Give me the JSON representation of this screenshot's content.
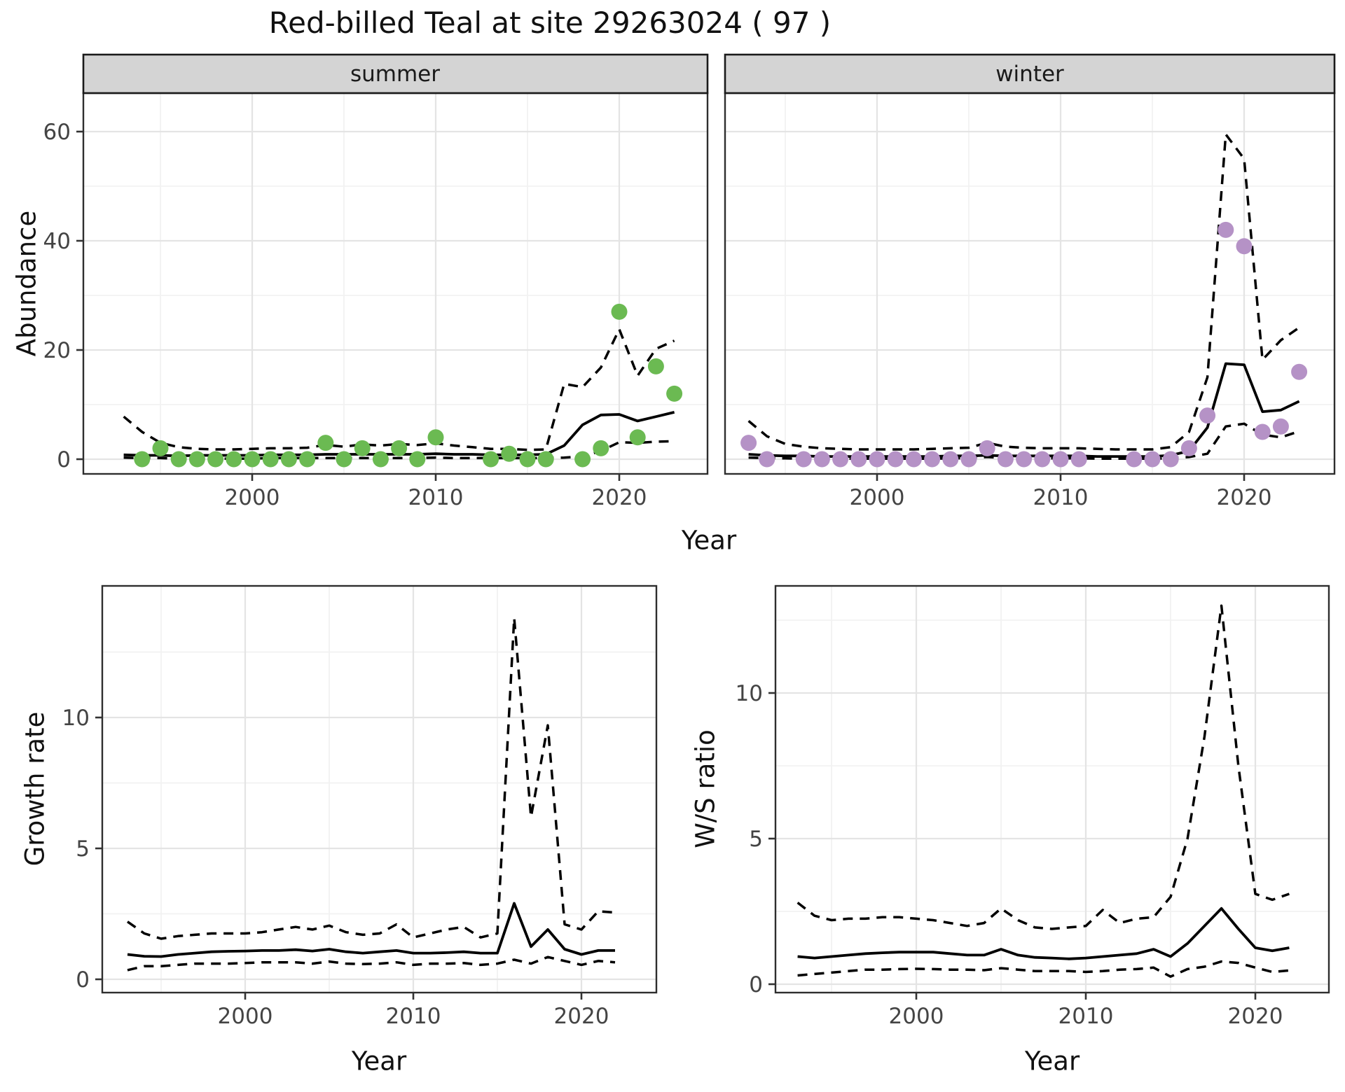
{
  "title": "Red-billed Teal at site 29263024 ( 97 )",
  "facets": {
    "summer": "summer",
    "winter": "winter"
  },
  "axis_titles": {
    "abundance": "Abundance",
    "year_top": "Year",
    "growth_rate": "Growth rate",
    "ws_ratio": "W/S ratio",
    "year_bottom_left": "Year",
    "year_bottom_right": "Year"
  },
  "colors": {
    "summer_point": "#6bba52",
    "winter_point": "#b592c6",
    "fit_line": "#000000",
    "ci_line": "#000000",
    "strip_bg": "#d4d4d4",
    "strip_border": "#1a1a1a",
    "panel_border": "#2e2e2e",
    "grid_major": "#e4e4e4",
    "grid_minor": "#f2f2f2",
    "tick_mark": "#333333",
    "tick_text": "#444444",
    "panel_bg": "#ffffff"
  },
  "chart_data": [
    {
      "id": "abundance_summer",
      "type": "scatter",
      "facet_label": "summer",
      "xlabel": "Year",
      "ylabel": "Abundance",
      "xlim": [
        1991,
        2024.6
      ],
      "ylim": [
        -2.7,
        67
      ],
      "x_ticks": {
        "major": [
          2000,
          2010,
          2020
        ],
        "labels": [
          "2000",
          "2010",
          "2020"
        ],
        "minor": [
          1995,
          2005,
          2015
        ]
      },
      "y_ticks": {
        "major": [
          0,
          20,
          40,
          60
        ],
        "labels": [
          "0",
          "20",
          "40",
          "60"
        ],
        "minor": [
          10,
          30,
          50
        ]
      },
      "points": {
        "years": [
          1994,
          1995,
          1996,
          1997,
          1998,
          1999,
          2000,
          2001,
          2002,
          2003,
          2004,
          2005,
          2006,
          2007,
          2008,
          2009,
          2010,
          2013,
          2014,
          2015,
          2016,
          2018,
          2019,
          2020,
          2021,
          2022,
          2023
        ],
        "values": [
          0,
          2,
          0,
          0,
          0,
          0,
          0,
          0,
          0,
          0,
          3,
          0,
          2,
          0,
          2,
          0,
          4,
          0,
          1,
          0,
          0,
          0,
          2,
          27,
          4,
          17,
          12
        ]
      },
      "fit": {
        "start_year": 1993,
        "values": [
          0.8,
          0.7,
          0.7,
          0.6,
          0.7,
          0.7,
          0.7,
          0.7,
          0.8,
          0.8,
          0.8,
          0.9,
          0.9,
          0.9,
          0.9,
          0.9,
          0.9,
          1.0,
          0.9,
          0.9,
          0.8,
          0.8,
          0.8,
          0.9,
          2.5,
          6.3,
          8.1,
          8.2,
          7.0,
          7.8,
          8.6
        ]
      },
      "upper": {
        "start_year": 1993,
        "values": [
          7.8,
          5.0,
          3.0,
          2.2,
          1.9,
          1.8,
          1.8,
          1.9,
          2.0,
          2.0,
          2.1,
          2.6,
          2.3,
          2.7,
          2.5,
          2.8,
          2.6,
          2.9,
          2.5,
          2.2,
          1.9,
          1.9,
          1.7,
          1.8,
          13.8,
          13.2,
          16.8,
          23.8,
          15.3,
          20.2,
          21.7
        ]
      },
      "lower": {
        "start_year": 1993,
        "values": [
          0.3,
          0.2,
          0.2,
          0.1,
          0.1,
          0.1,
          0.1,
          0.1,
          0.2,
          0.2,
          0.2,
          0.2,
          0.2,
          0.2,
          0.2,
          0.2,
          0.2,
          0.3,
          0.2,
          0.2,
          0.2,
          0.2,
          0.2,
          0.2,
          0.3,
          0.5,
          1.5,
          3.1,
          3.0,
          3.2,
          3.3
        ]
      }
    },
    {
      "id": "abundance_winter",
      "type": "scatter",
      "facet_label": "winter",
      "xlabel": "Year",
      "ylabel": "Abundance",
      "xlim": [
        1991,
        2024.6
      ],
      "ylim": [
        -2.7,
        67
      ],
      "x_ticks": {
        "major": [
          2000,
          2010,
          2020
        ],
        "labels": [
          "2000",
          "2010",
          "2020"
        ],
        "minor": [
          1995,
          2005,
          2015
        ]
      },
      "y_ticks": {
        "major": [
          0,
          20,
          40,
          60
        ],
        "labels": [
          "0",
          "20",
          "40",
          "60"
        ],
        "minor": [
          10,
          30,
          50
        ]
      },
      "points": {
        "years": [
          1993,
          1994,
          1996,
          1997,
          1998,
          1999,
          2000,
          2001,
          2002,
          2003,
          2004,
          2005,
          2006,
          2007,
          2008,
          2009,
          2010,
          2011,
          2014,
          2015,
          2016,
          2017,
          2018,
          2019,
          2020,
          2021,
          2022,
          2023
        ],
        "values": [
          3,
          0,
          0,
          0,
          0,
          0,
          0,
          0,
          0,
          0,
          0,
          0,
          2,
          0,
          0,
          0,
          0,
          0,
          0,
          0,
          0,
          2,
          8,
          42,
          39,
          5,
          6,
          16
        ]
      },
      "fit": {
        "start_year": 1993,
        "values": [
          0.9,
          0.7,
          0.6,
          0.6,
          0.5,
          0.5,
          0.5,
          0.5,
          0.5,
          0.5,
          0.5,
          0.6,
          0.6,
          0.7,
          0.6,
          0.6,
          0.6,
          0.6,
          0.6,
          0.5,
          0.5,
          0.5,
          0.5,
          0.7,
          1.5,
          5.8,
          17.5,
          17.3,
          8.7,
          9.0,
          10.6
        ]
      },
      "upper": {
        "start_year": 1993,
        "values": [
          7.0,
          4.2,
          2.8,
          2.3,
          2.0,
          1.9,
          1.8,
          1.8,
          1.8,
          1.8,
          1.9,
          2.0,
          2.1,
          3.0,
          2.3,
          2.1,
          2.0,
          2.0,
          2.0,
          1.9,
          1.8,
          1.8,
          1.8,
          2.2,
          5.0,
          15.0,
          59.5,
          55.0,
          18.2,
          21.8,
          24.1
        ]
      },
      "lower": {
        "start_year": 1993,
        "values": [
          0.3,
          0.2,
          0.15,
          0.1,
          0.1,
          0.1,
          0.1,
          0.1,
          0.1,
          0.1,
          0.1,
          0.15,
          0.2,
          0.4,
          0.2,
          0.15,
          0.15,
          0.15,
          0.15,
          0.1,
          0.1,
          0.1,
          0.1,
          0.15,
          0.4,
          1.0,
          6.0,
          6.5,
          4.5,
          4.0,
          5.1
        ]
      }
    },
    {
      "id": "growth_rate",
      "type": "line",
      "facet_label": "",
      "xlabel": "Year",
      "ylabel": "Growth rate",
      "xlim": [
        1991.5,
        2024.5
      ],
      "ylim": [
        -0.5,
        15
      ],
      "x_ticks": {
        "major": [
          2000,
          2010,
          2020
        ],
        "labels": [
          "2000",
          "2010",
          "2020"
        ],
        "minor": [
          1995,
          2005,
          2015
        ]
      },
      "y_ticks": {
        "major": [
          0,
          5,
          10
        ],
        "labels": [
          "0",
          "5",
          "10"
        ],
        "minor": [
          2.5,
          7.5,
          12.5
        ]
      },
      "points": {
        "years": [],
        "values": []
      },
      "fit": {
        "start_year": 1993,
        "values": [
          0.95,
          0.88,
          0.87,
          0.95,
          1.0,
          1.05,
          1.07,
          1.08,
          1.1,
          1.1,
          1.13,
          1.08,
          1.15,
          1.05,
          1.0,
          1.05,
          1.1,
          1.0,
          1.0,
          1.02,
          1.05,
          1.0,
          1.0,
          2.9,
          1.25,
          1.9,
          1.15,
          0.95,
          1.1,
          1.1
        ]
      },
      "upper": {
        "start_year": 1993,
        "values": [
          2.2,
          1.75,
          1.55,
          1.65,
          1.7,
          1.75,
          1.75,
          1.75,
          1.8,
          1.9,
          2.0,
          1.9,
          2.05,
          1.8,
          1.7,
          1.75,
          2.1,
          1.6,
          1.75,
          1.9,
          2.0,
          1.6,
          1.75,
          13.8,
          6.2,
          9.7,
          2.1,
          1.9,
          2.6,
          2.55
        ]
      },
      "lower": {
        "start_year": 1993,
        "values": [
          0.35,
          0.5,
          0.5,
          0.55,
          0.6,
          0.6,
          0.6,
          0.62,
          0.65,
          0.65,
          0.65,
          0.6,
          0.68,
          0.6,
          0.58,
          0.6,
          0.65,
          0.55,
          0.6,
          0.6,
          0.62,
          0.55,
          0.6,
          0.75,
          0.6,
          0.85,
          0.7,
          0.55,
          0.7,
          0.65
        ]
      }
    },
    {
      "id": "ws_ratio",
      "type": "line",
      "facet_label": "",
      "xlabel": "Year",
      "ylabel": "W/S ratio",
      "xlim": [
        1991.7,
        2024.3
      ],
      "ylim": [
        -0.3,
        13.7
      ],
      "x_ticks": {
        "major": [
          2000,
          2010,
          2020
        ],
        "labels": [
          "2000",
          "2010",
          "2020"
        ],
        "minor": [
          1995,
          2005,
          2015
        ]
      },
      "y_ticks": {
        "major": [
          0,
          5,
          10
        ],
        "labels": [
          "0",
          "5",
          "10"
        ],
        "minor": [
          2.5,
          7.5,
          12.5
        ]
      },
      "points": {
        "years": [],
        "values": []
      },
      "fit": {
        "start_year": 1993,
        "values": [
          0.95,
          0.9,
          0.95,
          1.0,
          1.05,
          1.08,
          1.1,
          1.1,
          1.1,
          1.05,
          1.0,
          1.0,
          1.2,
          1.0,
          0.92,
          0.9,
          0.87,
          0.9,
          0.95,
          1.0,
          1.05,
          1.2,
          0.95,
          1.4,
          2.0,
          2.6,
          1.9,
          1.25,
          1.15,
          1.25
        ]
      },
      "upper": {
        "start_year": 1993,
        "values": [
          2.8,
          2.35,
          2.2,
          2.25,
          2.25,
          2.3,
          2.3,
          2.25,
          2.2,
          2.1,
          2.0,
          2.1,
          2.6,
          2.2,
          1.95,
          1.9,
          1.95,
          2.0,
          2.55,
          2.1,
          2.25,
          2.3,
          3.0,
          5.0,
          8.5,
          13.0,
          7.5,
          3.1,
          2.9,
          3.1
        ]
      },
      "lower": {
        "start_year": 1993,
        "values": [
          0.3,
          0.35,
          0.4,
          0.45,
          0.5,
          0.5,
          0.52,
          0.53,
          0.52,
          0.5,
          0.5,
          0.48,
          0.55,
          0.5,
          0.45,
          0.45,
          0.45,
          0.42,
          0.45,
          0.5,
          0.52,
          0.57,
          0.26,
          0.52,
          0.6,
          0.78,
          0.73,
          0.57,
          0.42,
          0.47
        ]
      }
    }
  ]
}
